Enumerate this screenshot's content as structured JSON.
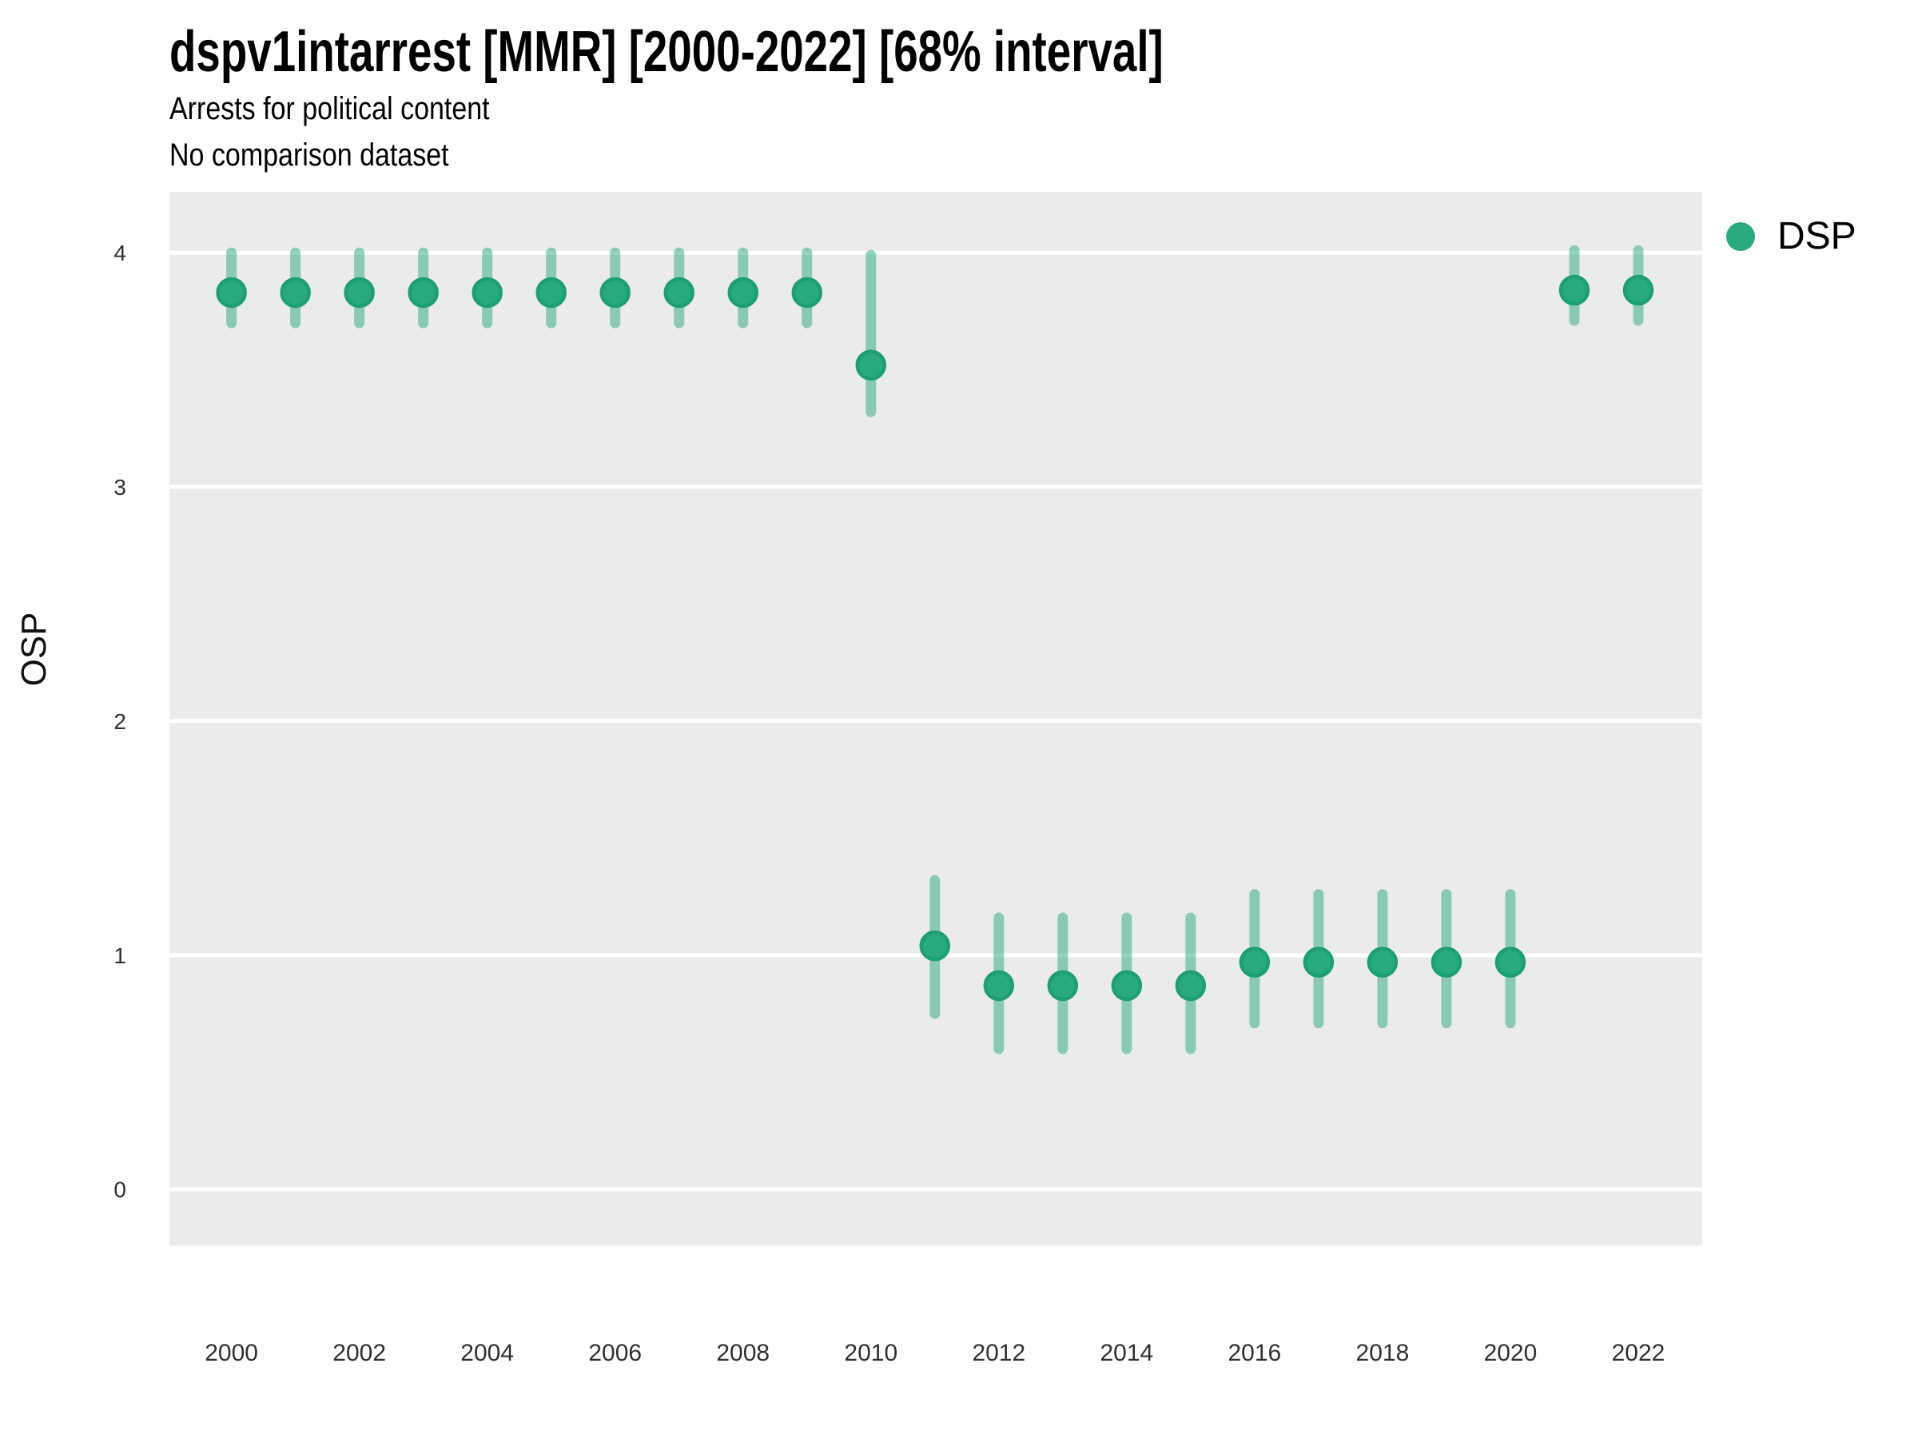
{
  "chart_data": {
    "type": "scatter",
    "title": "dspv1intarrest [MMR] [2000-2022] [68% interval]",
    "subtitle": "Arrests for political content",
    "note": "No comparison dataset",
    "xlabel": "",
    "ylabel": "OSP",
    "interval_label": "68% interval",
    "country_code": "MMR",
    "grid": "horizontal-major-only",
    "legend": {
      "position": "right",
      "entries": [
        {
          "label": "DSP",
          "color": "#2aa87e"
        }
      ]
    },
    "x_ticks": [
      2000,
      2002,
      2004,
      2006,
      2008,
      2010,
      2012,
      2014,
      2016,
      2018,
      2020,
      2022
    ],
    "y_ticks": [
      0,
      1,
      2,
      3,
      4
    ],
    "xlim": [
      1999.03,
      2023.0
    ],
    "ylim": [
      -0.24,
      4.26
    ],
    "series": [
      {
        "name": "DSP",
        "x": [
          2000,
          2001,
          2002,
          2003,
          2004,
          2005,
          2006,
          2007,
          2008,
          2009,
          2010,
          2011,
          2012,
          2013,
          2014,
          2015,
          2016,
          2017,
          2018,
          2019,
          2020,
          2021,
          2022
        ],
        "y": [
          3.83,
          3.83,
          3.83,
          3.83,
          3.83,
          3.83,
          3.83,
          3.83,
          3.83,
          3.83,
          3.52,
          1.04,
          0.87,
          0.87,
          0.87,
          0.87,
          0.97,
          0.97,
          0.97,
          0.97,
          0.97,
          3.84,
          3.84
        ],
        "y_lo": [
          3.7,
          3.7,
          3.7,
          3.7,
          3.7,
          3.7,
          3.7,
          3.7,
          3.7,
          3.7,
          3.32,
          0.75,
          0.6,
          0.6,
          0.6,
          0.6,
          0.71,
          0.71,
          0.71,
          0.71,
          0.71,
          3.71,
          3.71
        ],
        "y_hi": [
          4.0,
          4.0,
          4.0,
          4.0,
          4.0,
          4.0,
          4.0,
          4.0,
          4.0,
          4.0,
          3.99,
          1.32,
          1.16,
          1.16,
          1.16,
          1.16,
          1.26,
          1.26,
          1.26,
          1.26,
          1.26,
          4.01,
          4.01
        ]
      }
    ],
    "colors": {
      "point_fill": "#2aa87e",
      "point_stroke": "#1f9e72",
      "interval_bar": "rgba(42,168,126,0.5)",
      "panel_background": "#ebebeb",
      "gridline": "#ffffff",
      "tick_text": "#303030"
    }
  }
}
